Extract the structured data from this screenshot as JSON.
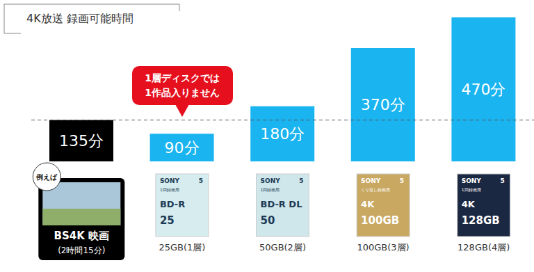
{
  "chart_data": {
    "type": "bar",
    "title": "4K放送 録画可能時間",
    "categories": [
      "BS4K 映画",
      "25GB(1層)",
      "50GB(2層)",
      "100GB(3層)",
      "128GB(4層)"
    ],
    "values": [
      135,
      90,
      180,
      370,
      470
    ],
    "value_labels": [
      "135分",
      "90分",
      "180分",
      "370分",
      "470分"
    ],
    "colors": [
      "#000000",
      "#1ab4f0",
      "#1ab4f0",
      "#1ab4f0",
      "#1ab4f0"
    ],
    "ylim": [
      0,
      470
    ],
    "yticks": [],
    "tick_labels": "x",
    "data_labels": true,
    "reference_line": {
      "value": 135,
      "line_style": "dashed"
    },
    "annotations": {
      "example": "例えば",
      "duration": "(2時間15分)",
      "callout": [
        "1層ディスクでは",
        "1作品入りません"
      ]
    },
    "packages": [
      {
        "brand": "SONY",
        "note": "1回録画用",
        "label": "BD-R",
        "capacity": "25",
        "pack": "5"
      },
      {
        "brand": "SONY",
        "note": "1回録画用",
        "label": "BD-R DL",
        "capacity": "50",
        "pack": "5"
      },
      {
        "brand": "SONY",
        "note": "くり返し録画用",
        "label": "4K",
        "capacity": "100GB",
        "pack": "5"
      },
      {
        "brand": "SONY",
        "note": "1回録画用",
        "label": "4K",
        "capacity": "128GB",
        "pack": "5"
      }
    ]
  }
}
